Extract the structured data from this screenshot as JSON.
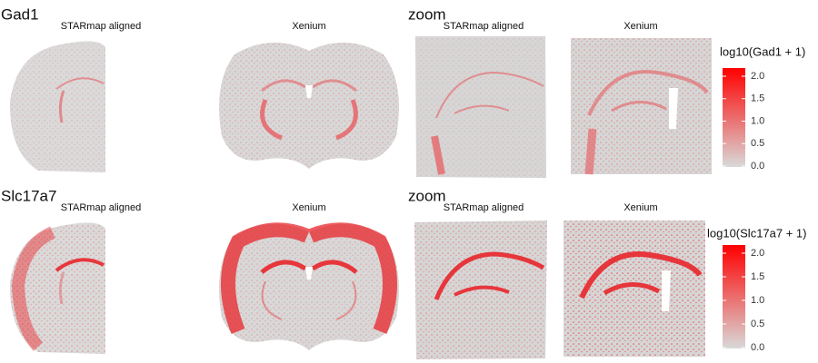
{
  "rows": [
    {
      "gene": "Gad1",
      "zoom_title": "zoom",
      "panels": [
        "STARmap aligned",
        "Xenium",
        "STARmap aligned",
        "Xenium"
      ],
      "legend": {
        "title": "log10(Gad1 + 1)",
        "ticks": [
          "0.0",
          "0.5",
          "1.0",
          "1.5",
          "2.0"
        ]
      }
    },
    {
      "gene": "Slc17a7",
      "zoom_title": "zoom",
      "panels": [
        "STARmap aligned",
        "Xenium",
        "STARmap aligned",
        "Xenium"
      ],
      "legend": {
        "title": "log10(Slc17a7 + 1)",
        "ticks": [
          "0.0",
          "0.5",
          "1.0",
          "1.5",
          "2.0"
        ]
      }
    }
  ]
}
